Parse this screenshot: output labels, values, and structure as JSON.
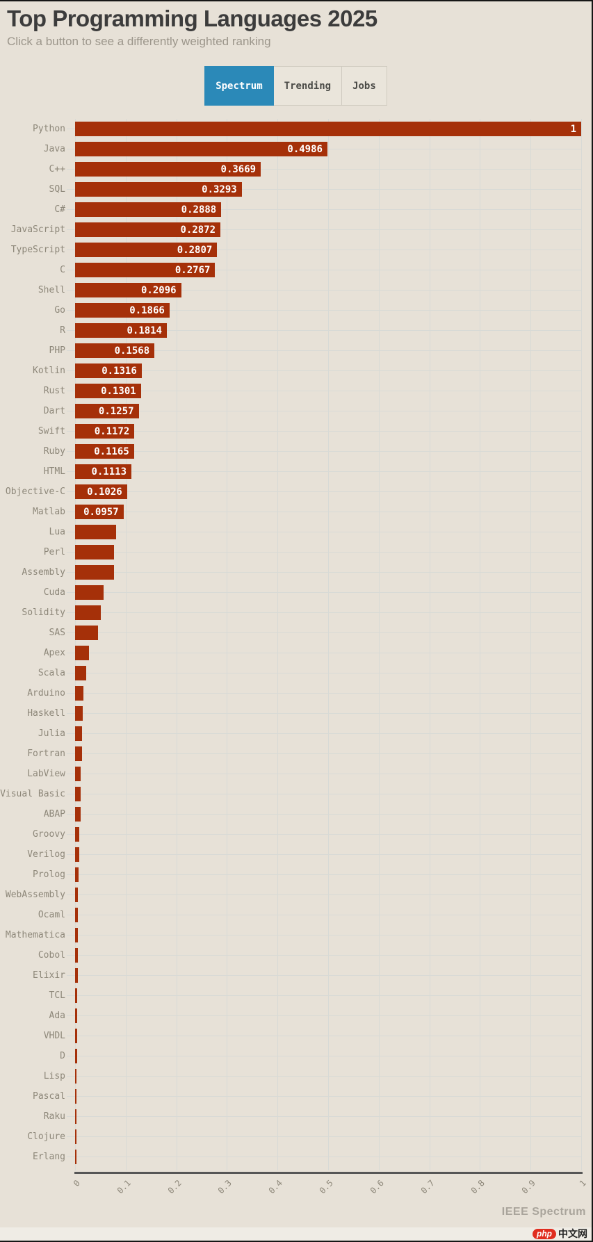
{
  "page": {
    "title": "Top Programming Languages 2025",
    "subtitle": "Click a button to see a differently weighted ranking"
  },
  "buttons": [
    {
      "label": "Spectrum",
      "active": true
    },
    {
      "label": "Trending",
      "active": false
    },
    {
      "label": "Jobs",
      "active": false
    }
  ],
  "chart_data": {
    "type": "bar",
    "orientation": "horizontal",
    "title": "Top Programming Languages 2025",
    "xlabel": "",
    "ylabel": "",
    "xlim": [
      0,
      1
    ],
    "grid": true,
    "bar_color": "#a53009",
    "x_ticks": [
      "0",
      "0.1",
      "0.2",
      "0.3",
      "0.4",
      "0.5",
      "0.6",
      "0.7",
      "0.8",
      "0.9",
      "1"
    ],
    "categories": [
      "Python",
      "Java",
      "C++",
      "SQL",
      "C#",
      "JavaScript",
      "TypeScript",
      "C",
      "Shell",
      "Go",
      "R",
      "PHP",
      "Kotlin",
      "Rust",
      "Dart",
      "Swift",
      "Ruby",
      "HTML",
      "Objective-C",
      "Matlab",
      "Lua",
      "Perl",
      "Assembly",
      "Cuda",
      "Solidity",
      "SAS",
      "Apex",
      "Scala",
      "Arduino",
      "Haskell",
      "Julia",
      "Fortran",
      "LabView",
      "Visual Basic",
      "ABAP",
      "Groovy",
      "Verilog",
      "Prolog",
      "WebAssembly",
      "Ocaml",
      "Mathematica",
      "Cobol",
      "Elixir",
      "TCL",
      "Ada",
      "VHDL",
      "D",
      "Lisp",
      "Pascal",
      "Raku",
      "Clojure",
      "Erlang"
    ],
    "values": [
      1,
      0.4986,
      0.3669,
      0.3293,
      0.2888,
      0.2872,
      0.2807,
      0.2767,
      0.2096,
      0.1866,
      0.1814,
      0.1568,
      0.1316,
      0.1301,
      0.1257,
      0.1172,
      0.1165,
      0.1113,
      0.1026,
      0.0957,
      0.081,
      0.0775,
      0.077,
      0.0565,
      0.0512,
      0.0458,
      0.027,
      0.0215,
      0.0165,
      0.0147,
      0.0138,
      0.0136,
      0.011,
      0.0106,
      0.0104,
      0.0088,
      0.0082,
      0.0073,
      0.0061,
      0.006,
      0.0051,
      0.005,
      0.0049,
      0.0042,
      0.004,
      0.0039,
      0.0038,
      0.003,
      0.0024,
      0.0022,
      0.002,
      0.0016
    ],
    "value_labels": [
      "1",
      "0.4986",
      "0.3669",
      "0.3293",
      "0.2888",
      "0.2872",
      "0.2807",
      "0.2767",
      "0.2096",
      "0.1866",
      "0.1814",
      "0.1568",
      "0.1316",
      "0.1301",
      "0.1257",
      "0.1172",
      "0.1165",
      "0.1113",
      "0.1026",
      "0.0957",
      null,
      null,
      null,
      null,
      null,
      null,
      null,
      null,
      null,
      null,
      null,
      null,
      null,
      null,
      null,
      null,
      null,
      null,
      null,
      null,
      null,
      null,
      null,
      null,
      null,
      null,
      null,
      null,
      null,
      null,
      null,
      null
    ]
  },
  "footer": {
    "credit": "IEEE Spectrum",
    "watermark_logo": "php",
    "watermark_text": "中文网"
  },
  "colors": {
    "background": "#e7e1d7",
    "bar": "#a53009",
    "active_button": "#2b89b8",
    "grid": "#d8dad6",
    "axis": "#565656",
    "label": "#8d8779"
  }
}
